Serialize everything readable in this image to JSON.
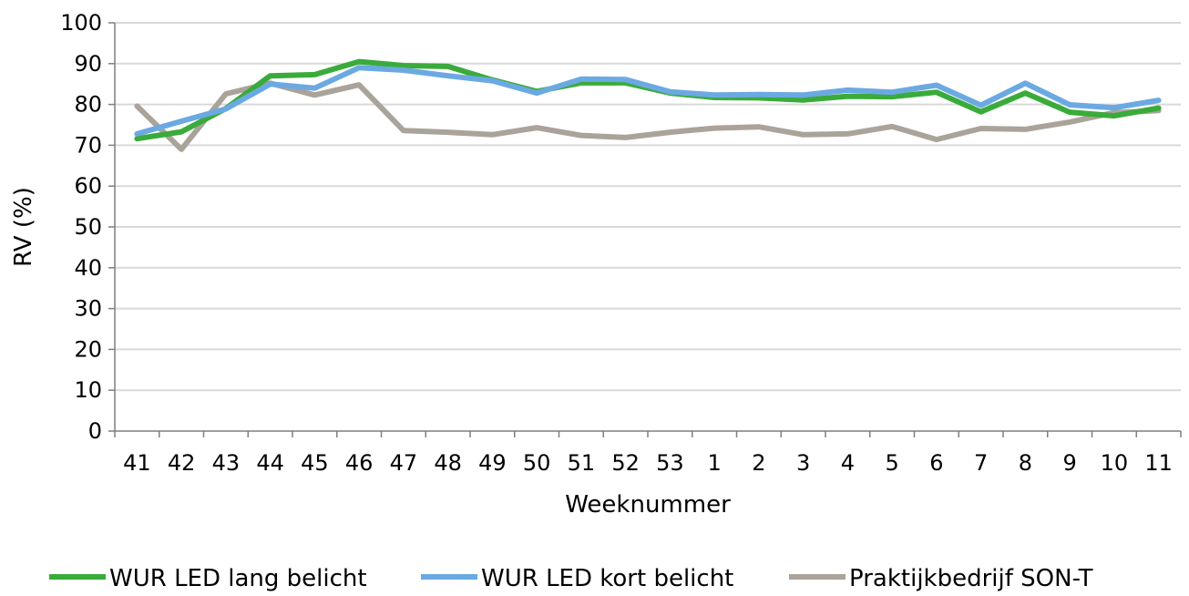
{
  "chart_data": {
    "type": "line",
    "xlabel": "Weeknummer",
    "ylabel": "RV (%)",
    "ylim": [
      0,
      100
    ],
    "yticks": [
      0,
      10,
      20,
      30,
      40,
      50,
      60,
      70,
      80,
      90,
      100
    ],
    "grid": true,
    "legend_position": "bottom",
    "categories": [
      "41",
      "42",
      "43",
      "44",
      "45",
      "46",
      "47",
      "48",
      "49",
      "50",
      "51",
      "52",
      "53",
      "1",
      "2",
      "3",
      "4",
      "5",
      "6",
      "7",
      "8",
      "9",
      "10",
      "11"
    ],
    "series": [
      {
        "name": "WUR LED lang belicht",
        "color": "#3aab3a",
        "values": [
          71.6,
          73.3,
          79.0,
          87.0,
          87.3,
          90.5,
          89.5,
          89.3,
          86.0,
          83.2,
          85.3,
          85.3,
          82.8,
          81.7,
          81.6,
          81.1,
          82.0,
          81.9,
          83.0,
          78.2,
          82.8,
          78.1,
          77.2,
          79.1
        ]
      },
      {
        "name": "WUR LED kort belicht",
        "color": "#6ba9e2",
        "values": [
          72.8,
          75.9,
          78.9,
          85.0,
          84.0,
          89.0,
          88.4,
          87.0,
          85.8,
          82.8,
          86.2,
          86.1,
          83.1,
          82.3,
          82.4,
          82.3,
          83.5,
          83.0,
          84.7,
          79.8,
          85.2,
          79.9,
          79.2,
          81.0
        ]
      },
      {
        "name": "Praktijkbedrijf SON-T",
        "color": "#aaa39a",
        "values": [
          79.6,
          69.0,
          82.6,
          85.2,
          82.3,
          84.8,
          73.6,
          73.2,
          72.6,
          74.3,
          72.4,
          71.9,
          73.2,
          74.2,
          74.5,
          72.6,
          72.8,
          74.6,
          71.4,
          74.1,
          73.9,
          75.7,
          78.0,
          78.5
        ]
      }
    ]
  }
}
